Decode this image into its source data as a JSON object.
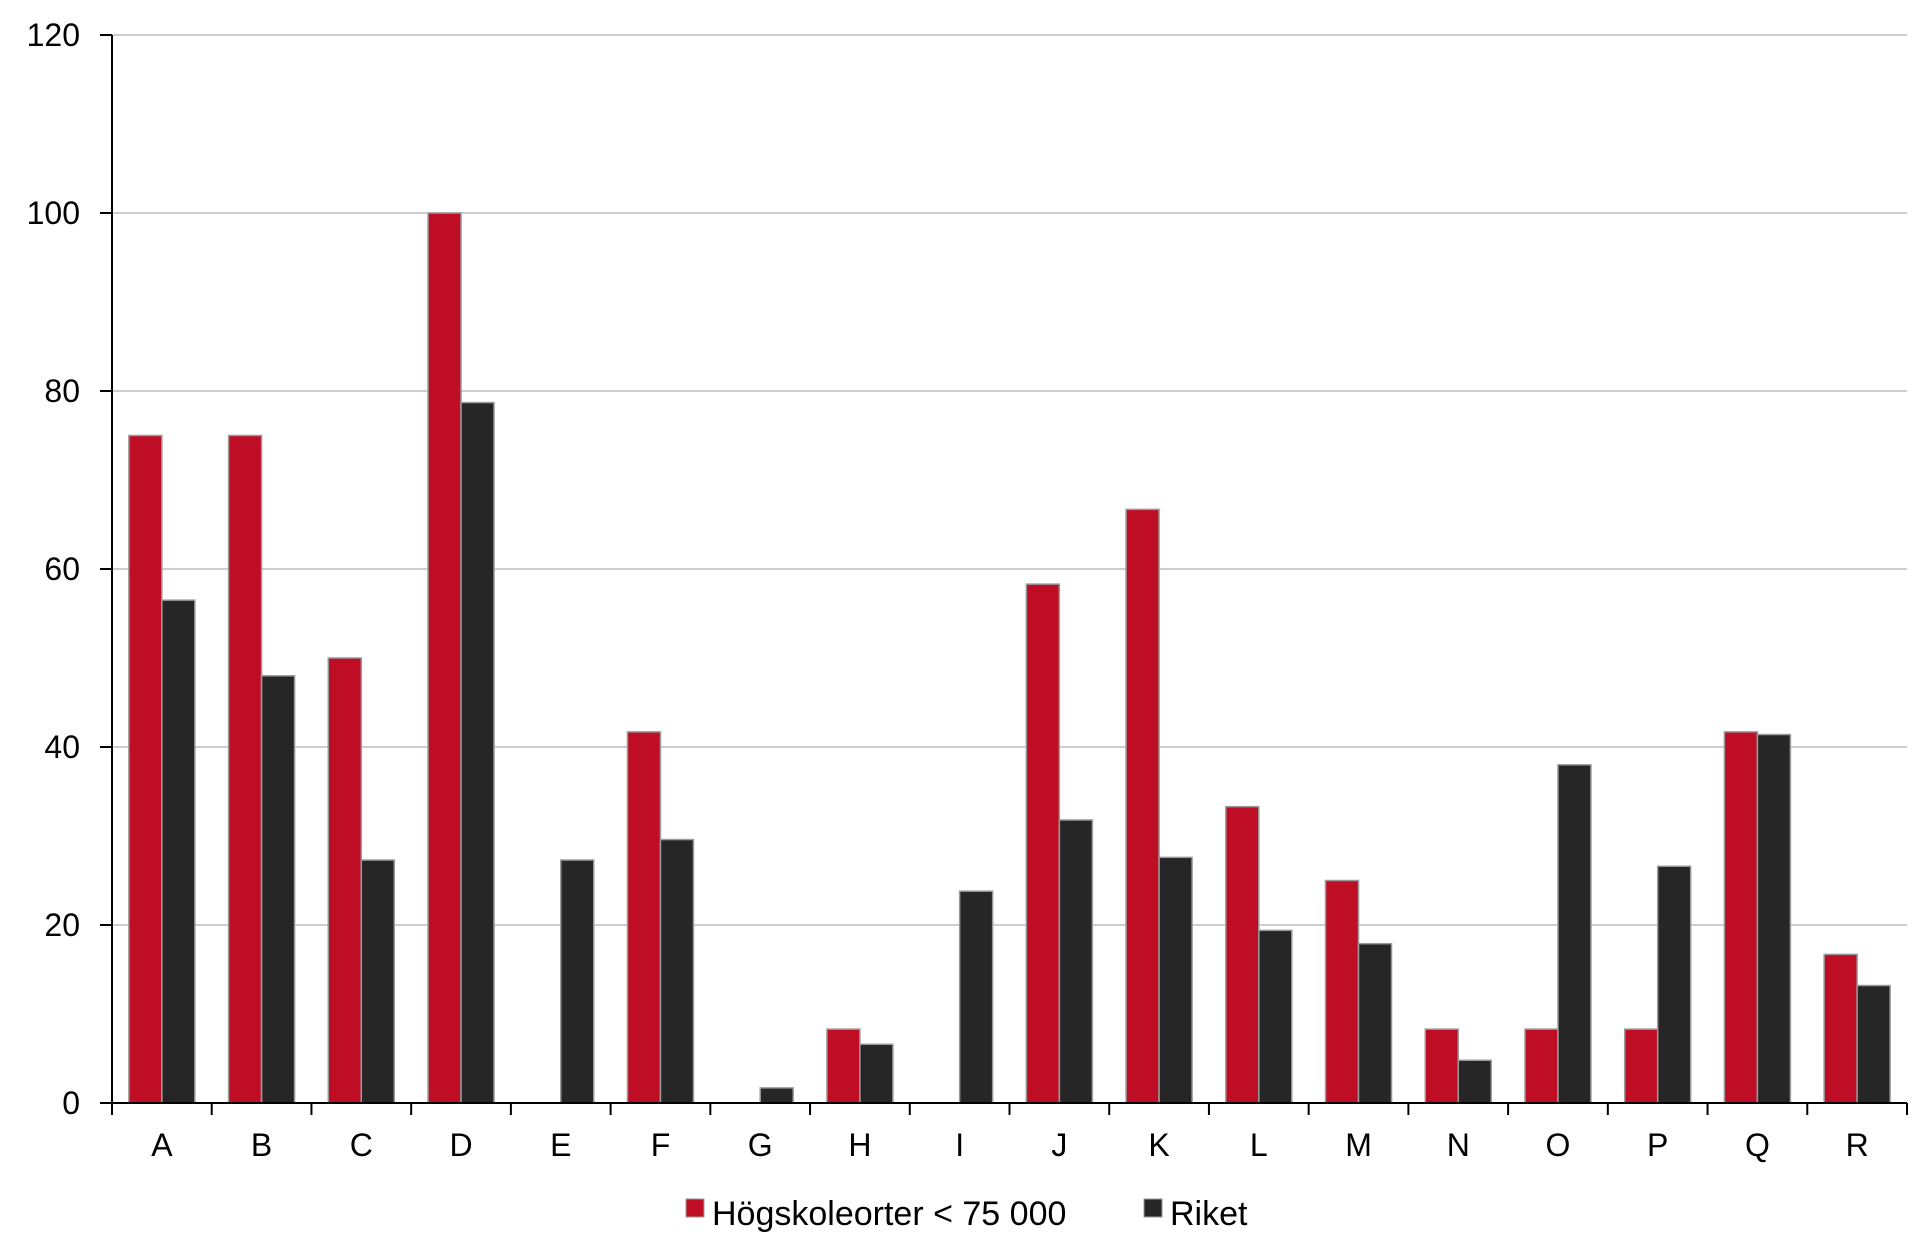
{
  "chart_data": {
    "type": "bar",
    "title": "",
    "xlabel": "",
    "ylabel": "",
    "categories": [
      "A",
      "B",
      "C",
      "D",
      "E",
      "F",
      "G",
      "H",
      "I",
      "J",
      "K",
      "L",
      "M",
      "N",
      "O",
      "P",
      "Q",
      "R"
    ],
    "series": [
      {
        "name": "Högskoleorter < 75 000",
        "color": "#c00d26",
        "values": [
          75,
          75,
          50,
          100,
          0,
          41.7,
          0,
          8.3,
          0,
          58.3,
          66.7,
          33.3,
          25,
          8.3,
          8.3,
          8.3,
          41.7,
          16.7
        ]
      },
      {
        "name": "Riket",
        "color": "#262626",
        "values": [
          56.5,
          48,
          27.3,
          78.7,
          27.3,
          29.6,
          1.7,
          6.6,
          23.8,
          31.8,
          27.6,
          19.4,
          17.9,
          4.8,
          38,
          26.6,
          41.4,
          13.2
        ]
      }
    ],
    "ylim": [
      0,
      120
    ],
    "yticks": [
      0,
      20,
      40,
      60,
      80,
      100,
      120
    ],
    "grid": true,
    "legend_position": "bottom-center"
  }
}
